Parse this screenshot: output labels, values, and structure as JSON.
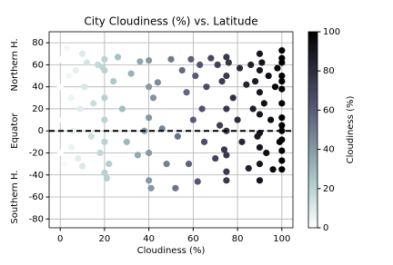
{
  "chart_data": {
    "type": "scatter",
    "title": "City Cloudiness (%) vs. Latitude",
    "x_label": "Cloudiness (%)",
    "annotations": [
      "Northern H.",
      "Equator",
      "Southern H."
    ],
    "annotation_y": [
      60,
      0,
      -60
    ],
    "hline": 0,
    "colormap": "bone_r",
    "x": [
      0,
      0,
      0,
      1,
      2,
      3,
      4,
      5,
      5,
      6,
      7,
      8,
      9,
      10,
      10,
      11,
      12,
      14,
      15,
      17,
      18,
      19,
      20,
      20,
      20,
      20,
      20,
      20,
      21,
      22,
      24,
      26,
      28,
      30,
      32,
      35,
      36,
      38,
      40,
      40,
      40,
      40,
      40,
      41,
      42,
      44,
      46,
      48,
      50,
      52,
      53,
      55,
      57,
      58,
      59,
      60,
      61,
      62,
      63,
      64,
      65,
      66,
      68,
      70,
      71,
      72,
      73,
      74,
      75,
      75,
      75,
      75,
      75,
      75,
      75,
      76,
      78,
      80,
      81,
      82,
      84,
      85,
      86,
      87,
      88,
      89,
      90,
      90,
      90,
      90,
      90,
      90,
      90,
      90,
      91,
      92,
      93,
      94,
      95,
      96,
      97,
      98,
      99,
      100,
      100,
      100,
      100,
      100,
      100,
      100,
      100,
      100,
      100,
      100,
      100,
      100,
      100
    ],
    "y": [
      -20,
      40,
      65,
      10,
      -30,
      75,
      50,
      -15,
      30,
      0,
      55,
      -25,
      20,
      70,
      -32,
      40,
      62,
      -5,
      25,
      60,
      -20,
      58,
      55,
      30,
      10,
      -10,
      -38,
      65,
      -43,
      -30,
      45,
      67,
      20,
      -10,
      52,
      -22,
      63,
      0,
      64,
      40,
      12,
      -20,
      -45,
      -52,
      30,
      44,
      2,
      -30,
      65,
      -52,
      -5,
      55,
      35,
      -30,
      65,
      10,
      50,
      -46,
      60,
      20,
      -10,
      40,
      66,
      -25,
      60,
      5,
      45,
      -17,
      67,
      50,
      20,
      0,
      -22,
      -37,
      -45,
      62,
      30,
      10,
      57,
      -10,
      42,
      -34,
      60,
      20,
      45,
      -5,
      70,
      55,
      35,
      15,
      -2,
      -15,
      -30,
      -45,
      62,
      25,
      -20,
      50,
      10,
      -35,
      40,
      57,
      -10,
      73,
      62,
      50,
      38,
      25,
      12,
      5,
      0,
      -8,
      -18,
      -27,
      -35,
      66,
      45
    ],
    "xlim": [
      -5,
      105
    ],
    "ylim": [
      -88,
      90
    ],
    "xticks": [
      0,
      20,
      40,
      60,
      80,
      100
    ],
    "yticks": [
      -80,
      -60,
      -40,
      -20,
      0,
      20,
      40,
      60,
      80
    ],
    "grid": true,
    "colorbar": {
      "label": "Cloudiness (%)",
      "lim": [
        0,
        100
      ],
      "ticks": [
        0,
        20,
        40,
        60,
        80,
        100
      ]
    }
  }
}
